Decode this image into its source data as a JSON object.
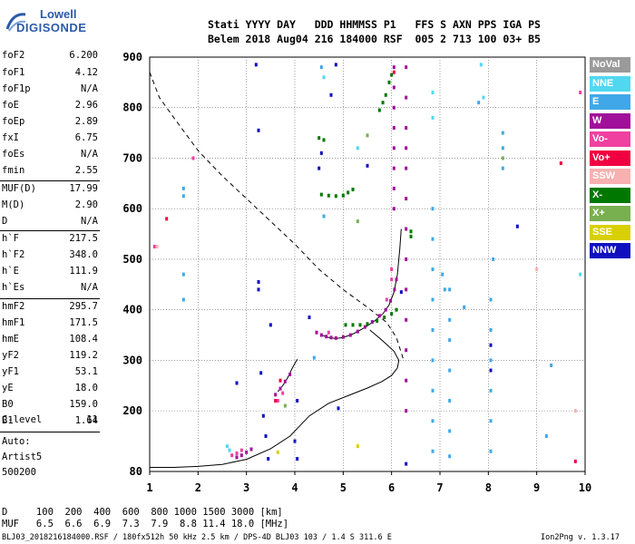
{
  "logo": {
    "word": "Lowell",
    "brand": "DIGISONDE"
  },
  "header": {
    "line1": "Stati YYYY DAY   DDD HHMMSS P1   FFS S AXN PPS IGA PS",
    "line2": "Belem 2018 Aug04 216 184000 RSF  005 2 713 100 03+ B5"
  },
  "params": [
    {
      "k": "foF2",
      "v": "6.200"
    },
    {
      "k": "foF1",
      "v": "4.12"
    },
    {
      "k": "foF1p",
      "v": "N/A"
    },
    {
      "k": "foE",
      "v": "2.96"
    },
    {
      "k": "foEp",
      "v": "2.89"
    },
    {
      "k": "fxI",
      "v": "6.75"
    },
    {
      "k": "foEs",
      "v": "N/A"
    },
    {
      "k": "fmin",
      "v": "2.55"
    },
    {
      "k": "MUF(D)",
      "v": "17.99"
    },
    {
      "k": "M(D)",
      "v": "2.90"
    },
    {
      "k": "D",
      "v": "N/A"
    },
    {
      "k": "h`F",
      "v": "217.5"
    },
    {
      "k": "h`F2",
      "v": "348.0"
    },
    {
      "k": "h`E",
      "v": "111.9"
    },
    {
      "k": "h`Es",
      "v": "N/A"
    },
    {
      "k": "hmF2",
      "v": "295.7"
    },
    {
      "k": "hmF1",
      "v": "171.5"
    },
    {
      "k": "hmE",
      "v": "108.4"
    },
    {
      "k": "yF2",
      "v": "119.2"
    },
    {
      "k": "yF1",
      "v": "53.1"
    },
    {
      "k": "yE",
      "v": "18.0"
    },
    {
      "k": "B0",
      "v": "159.0"
    },
    {
      "k": "B1",
      "v": "1.64"
    },
    {
      "k": "C-level",
      "v": "11"
    }
  ],
  "auto": {
    "line1": "Auto:",
    "line2": "Artist5",
    "line3": "500200"
  },
  "legend": [
    {
      "label": "NoVal",
      "color": "#9a9a9a"
    },
    {
      "label": "NNE",
      "color": "#50d8f0"
    },
    {
      "label": "E",
      "color": "#40a8e8"
    },
    {
      "label": "W",
      "color": "#a0109a"
    },
    {
      "label": "Vo-",
      "color": "#f040a0"
    },
    {
      "label": "Vo+",
      "color": "#f00040"
    },
    {
      "label": "SSW",
      "color": "#f8b0b0"
    },
    {
      "label": "X-",
      "color": "#007800"
    },
    {
      "label": "X+",
      "color": "#78b050"
    },
    {
      "label": "SSE",
      "color": "#d8d000"
    },
    {
      "label": "NNW",
      "color": "#1010c0"
    }
  ],
  "footer": {
    "d_line": "D     100  200  400  600  800 1000 1500 3000 [km]",
    "muf_line": "MUF   6.5  6.6  6.9  7.3  7.9  8.8 11.4 18.0 [MHz]",
    "file_line": "BLJ03_2018216184000.RSF / 180fx512h 50 kHz 2.5 km / DPS-4D BLJ03 103 / 1.4 S 311.6 E",
    "version": "Ion2Png v. 1.3.17"
  },
  "chart_data": {
    "type": "scatter",
    "title": "",
    "xlabel": "",
    "ylabel": "",
    "xlim": [
      1,
      10
    ],
    "ylim": [
      80,
      900
    ],
    "x_ticks": [
      1,
      2,
      3,
      4,
      5,
      6,
      7,
      8,
      9,
      10
    ],
    "y_ticks": [
      80,
      200,
      300,
      400,
      500,
      600,
      700,
      800,
      900
    ],
    "grid": true,
    "legend_placement": "right",
    "lines": [
      {
        "name": "O-trace",
        "style": "solid",
        "points": [
          [
            3.65,
            238
          ],
          [
            3.75,
            250
          ],
          [
            3.85,
            265
          ],
          [
            3.95,
            285
          ],
          [
            4.05,
            302
          ]
        ]
      },
      {
        "name": "O-trace",
        "style": "solid",
        "points": [
          [
            4.55,
            350
          ],
          [
            4.7,
            345
          ],
          [
            4.85,
            343
          ],
          [
            5.0,
            345
          ],
          [
            5.2,
            352
          ],
          [
            5.45,
            365
          ],
          [
            5.65,
            378
          ],
          [
            5.82,
            392
          ],
          [
            5.95,
            410
          ],
          [
            6.05,
            435
          ],
          [
            6.12,
            470
          ],
          [
            6.17,
            520
          ],
          [
            6.2,
            560
          ]
        ]
      },
      {
        "name": "profile",
        "style": "solid",
        "points": [
          [
            1.0,
            88
          ],
          [
            1.5,
            88
          ],
          [
            2.0,
            90
          ],
          [
            2.5,
            94
          ],
          [
            3.0,
            104
          ],
          [
            3.5,
            125
          ],
          [
            3.9,
            150
          ],
          [
            4.3,
            190
          ],
          [
            4.7,
            215
          ],
          [
            5.1,
            230
          ],
          [
            5.5,
            245
          ],
          [
            5.8,
            258
          ],
          [
            6.0,
            270
          ],
          [
            6.12,
            285
          ],
          [
            6.15,
            300
          ],
          [
            6.05,
            318
          ],
          [
            5.88,
            333
          ],
          [
            5.7,
            348
          ],
          [
            5.55,
            360
          ]
        ]
      },
      {
        "name": "MUF",
        "style": "dashed",
        "points": [
          [
            1.0,
            870
          ],
          [
            1.2,
            820
          ],
          [
            1.5,
            780
          ],
          [
            2.0,
            715
          ],
          [
            2.5,
            665
          ],
          [
            3.0,
            620
          ],
          [
            3.5,
            575
          ],
          [
            4.0,
            530
          ],
          [
            4.5,
            480
          ],
          [
            5.0,
            440
          ],
          [
            5.5,
            405
          ],
          [
            5.9,
            375
          ],
          [
            6.1,
            345
          ],
          [
            6.2,
            315
          ],
          [
            6.25,
            300
          ]
        ]
      }
    ],
    "series": [
      {
        "name": "W",
        "color": "#a0109a",
        "points": [
          [
            4.45,
            355
          ],
          [
            4.55,
            350
          ],
          [
            4.65,
            347
          ],
          [
            4.75,
            345
          ],
          [
            4.85,
            344
          ],
          [
            5.0,
            346
          ],
          [
            5.15,
            350
          ],
          [
            5.3,
            357
          ],
          [
            5.45,
            366
          ],
          [
            5.6,
            376
          ],
          [
            5.75,
            388
          ],
          [
            5.88,
            400
          ],
          [
            5.98,
            418
          ],
          [
            6.06,
            440
          ],
          [
            6.1,
            460
          ],
          [
            3.6,
            232
          ],
          [
            3.7,
            244
          ],
          [
            3.8,
            258
          ],
          [
            3.9,
            272
          ],
          [
            2.8,
            108
          ],
          [
            2.9,
            112
          ],
          [
            3.0,
            118
          ],
          [
            3.1,
            124
          ],
          [
            6.05,
            600
          ],
          [
            6.05,
            640
          ],
          [
            6.05,
            680
          ],
          [
            6.05,
            720
          ],
          [
            6.05,
            760
          ],
          [
            6.05,
            800
          ],
          [
            6.05,
            840
          ],
          [
            6.05,
            880
          ],
          [
            6.3,
            200
          ],
          [
            6.3,
            260
          ],
          [
            6.3,
            320
          ],
          [
            6.3,
            380
          ],
          [
            6.3,
            440
          ],
          [
            6.3,
            500
          ],
          [
            6.3,
            560
          ],
          [
            6.3,
            620
          ],
          [
            6.3,
            680
          ],
          [
            6.3,
            720
          ],
          [
            6.3,
            760
          ],
          [
            6.3,
            820
          ],
          [
            6.3,
            880
          ]
        ]
      },
      {
        "name": "X-",
        "color": "#007800",
        "points": [
          [
            5.05,
            370
          ],
          [
            5.2,
            370
          ],
          [
            5.35,
            370
          ],
          [
            5.5,
            372
          ],
          [
            5.7,
            378
          ],
          [
            5.85,
            385
          ],
          [
            6.0,
            392
          ],
          [
            6.1,
            400
          ],
          [
            4.55,
            628
          ],
          [
            4.7,
            626
          ],
          [
            4.85,
            625
          ],
          [
            5.0,
            626
          ],
          [
            5.1,
            632
          ],
          [
            5.2,
            638
          ],
          [
            5.75,
            795
          ],
          [
            5.82,
            810
          ],
          [
            5.88,
            825
          ],
          [
            5.95,
            850
          ],
          [
            6.0,
            865
          ],
          [
            6.4,
            545
          ],
          [
            6.4,
            555
          ],
          [
            4.5,
            740
          ],
          [
            4.6,
            736
          ]
        ]
      },
      {
        "name": "E",
        "color": "#40a8e8",
        "points": [
          [
            6.85,
            120
          ],
          [
            6.85,
            180
          ],
          [
            6.85,
            240
          ],
          [
            6.85,
            300
          ],
          [
            6.85,
            360
          ],
          [
            6.85,
            420
          ],
          [
            6.85,
            480
          ],
          [
            6.85,
            540
          ],
          [
            6.85,
            600
          ],
          [
            7.2,
            110
          ],
          [
            7.2,
            160
          ],
          [
            7.2,
            220
          ],
          [
            7.2,
            280
          ],
          [
            7.2,
            340
          ],
          [
            7.2,
            380
          ],
          [
            7.2,
            440
          ],
          [
            8.05,
            120
          ],
          [
            8.05,
            180
          ],
          [
            8.05,
            240
          ],
          [
            8.05,
            300
          ],
          [
            8.05,
            360
          ],
          [
            8.05,
            420
          ],
          [
            8.1,
            500
          ],
          [
            8.3,
            680
          ],
          [
            8.3,
            720
          ],
          [
            8.3,
            750
          ],
          [
            1.7,
            420
          ],
          [
            1.7,
            470
          ],
          [
            1.7,
            625
          ],
          [
            1.7,
            640
          ],
          [
            4.6,
            585
          ],
          [
            4.4,
            305
          ],
          [
            4.55,
            880
          ],
          [
            7.05,
            470
          ],
          [
            7.1,
            440
          ],
          [
            9.2,
            150
          ],
          [
            9.3,
            290
          ],
          [
            7.5,
            405
          ],
          [
            7.8,
            810
          ]
        ]
      },
      {
        "name": "NNE",
        "color": "#50d8f0",
        "points": [
          [
            7.85,
            885
          ],
          [
            7.9,
            820
          ],
          [
            6.85,
            830
          ],
          [
            6.85,
            780
          ],
          [
            4.6,
            860
          ],
          [
            5.3,
            720
          ],
          [
            2.6,
            130
          ],
          [
            2.65,
            122
          ],
          [
            9.9,
            470
          ]
        ]
      },
      {
        "name": "Vo-",
        "color": "#f040a0",
        "points": [
          [
            3.65,
            220
          ],
          [
            3.75,
            235
          ],
          [
            2.7,
            112
          ],
          [
            2.8,
            116
          ],
          [
            2.9,
            122
          ],
          [
            4.7,
            355
          ],
          [
            5.9,
            420
          ],
          [
            6.0,
            460
          ],
          [
            6.0,
            480
          ],
          [
            1.9,
            700
          ],
          [
            1.1,
            525
          ],
          [
            9.9,
            830
          ]
        ]
      },
      {
        "name": "Vo+",
        "color": "#f00040",
        "points": [
          [
            1.35,
            580
          ],
          [
            3.6,
            220
          ],
          [
            3.7,
            260
          ],
          [
            6.05,
            870
          ],
          [
            9.8,
            100
          ],
          [
            9.5,
            690
          ]
        ]
      },
      {
        "name": "SSW",
        "color": "#f8b0b0",
        "points": [
          [
            1.15,
            525
          ],
          [
            9.0,
            480
          ],
          [
            9.8,
            200
          ]
        ]
      },
      {
        "name": "X+",
        "color": "#78b050",
        "points": [
          [
            3.8,
            210
          ],
          [
            5.5,
            745
          ],
          [
            5.3,
            575
          ],
          [
            8.3,
            700
          ]
        ]
      },
      {
        "name": "SSE",
        "color": "#d8d000",
        "points": [
          [
            3.65,
            118
          ],
          [
            5.3,
            130
          ]
        ]
      },
      {
        "name": "NNW",
        "color": "#1010c0",
        "points": [
          [
            3.25,
            455
          ],
          [
            3.25,
            440
          ],
          [
            3.25,
            755
          ],
          [
            3.2,
            885
          ],
          [
            3.3,
            275
          ],
          [
            3.4,
            150
          ],
          [
            3.45,
            105
          ],
          [
            3.5,
            370
          ],
          [
            4.0,
            140
          ],
          [
            4.05,
            105
          ],
          [
            4.3,
            385
          ],
          [
            4.5,
            680
          ],
          [
            4.55,
            710
          ],
          [
            4.75,
            825
          ],
          [
            4.85,
            885
          ],
          [
            4.9,
            205
          ],
          [
            5.5,
            685
          ],
          [
            6.2,
            435
          ],
          [
            6.3,
            95
          ],
          [
            8.05,
            330
          ],
          [
            8.05,
            280
          ],
          [
            8.6,
            565
          ],
          [
            2.8,
            255
          ],
          [
            4.05,
            220
          ],
          [
            3.35,
            190
          ]
        ]
      }
    ]
  }
}
